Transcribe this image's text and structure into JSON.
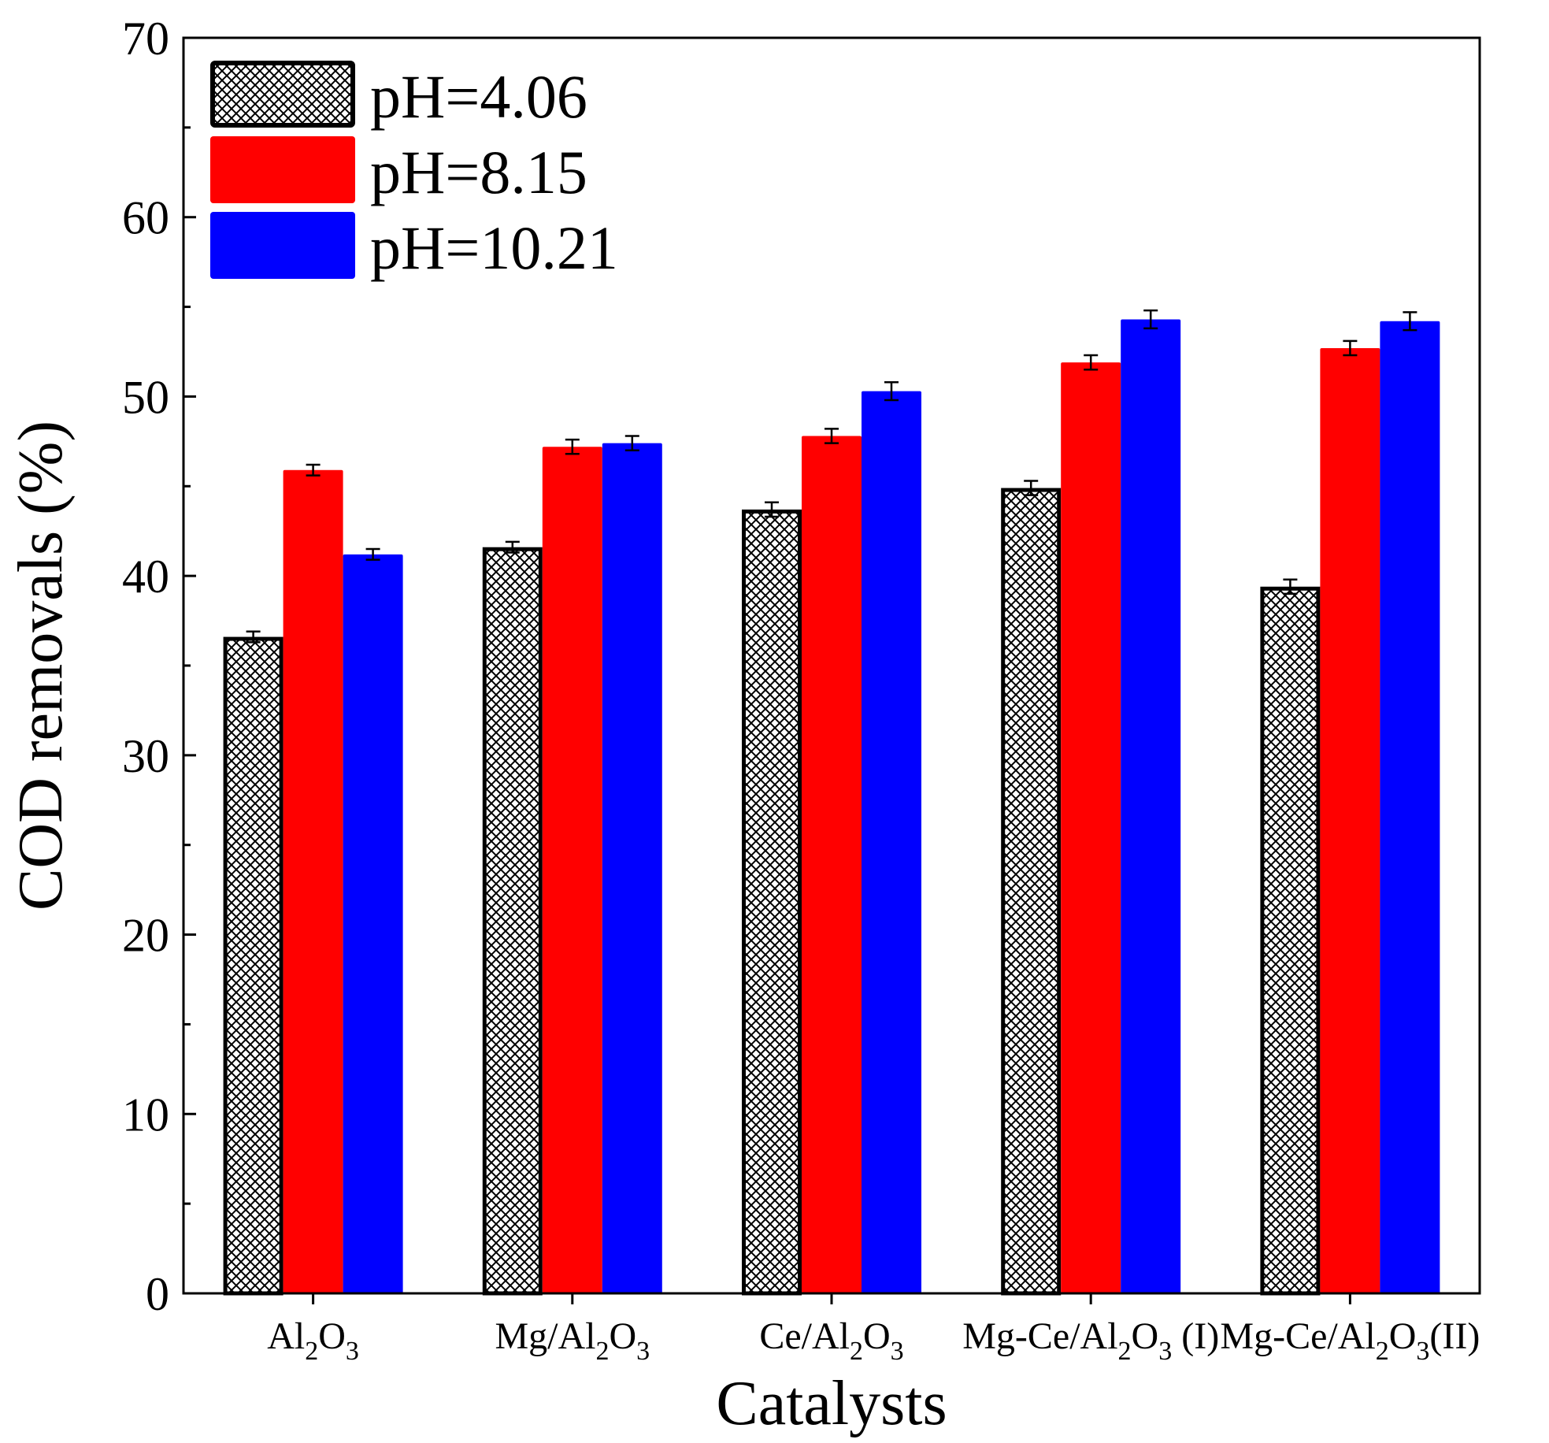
{
  "chart_data": {
    "type": "bar",
    "title": "",
    "xlabel": "Catalysts",
    "ylabel": "COD removals (%)",
    "ylim": [
      0,
      70
    ],
    "yticks": [
      0,
      10,
      20,
      30,
      40,
      50,
      60,
      70
    ],
    "grid": false,
    "legend_position": "top-left",
    "categories": [
      {
        "base": "Al",
        "sub1": "2",
        "mid": "O",
        "sub2": "3",
        "suffix": ""
      },
      {
        "base": "Mg/Al",
        "sub1": "2",
        "mid": "O",
        "sub2": "3",
        "suffix": ""
      },
      {
        "base": "Ce/Al",
        "sub1": "2",
        "mid": "O",
        "sub2": "3",
        "suffix": ""
      },
      {
        "base": "Mg-Ce/Al",
        "sub1": "2",
        "mid": "O",
        "sub2": "3",
        "suffix": " (I)"
      },
      {
        "base": "Mg-Ce/Al",
        "sub1": "2",
        "mid": "O",
        "sub2": "3",
        "suffix": "(II)"
      }
    ],
    "series": [
      {
        "name": "pH=4.06",
        "color": "#000000",
        "fill": "crosshatch",
        "values": [
          36.6,
          41.6,
          43.7,
          44.9,
          39.4
        ],
        "errors": [
          0.3,
          0.3,
          0.4,
          0.4,
          0.4
        ]
      },
      {
        "name": "pH=8.15",
        "color": "#ff0000",
        "fill": "solid",
        "values": [
          45.9,
          47.2,
          47.8,
          51.9,
          52.7
        ],
        "errors": [
          0.3,
          0.4,
          0.4,
          0.4,
          0.4
        ]
      },
      {
        "name": "pH=10.21",
        "color": "#0000ff",
        "fill": "solid",
        "values": [
          41.2,
          47.4,
          50.3,
          54.3,
          54.2
        ],
        "errors": [
          0.3,
          0.4,
          0.5,
          0.5,
          0.5
        ]
      }
    ]
  }
}
